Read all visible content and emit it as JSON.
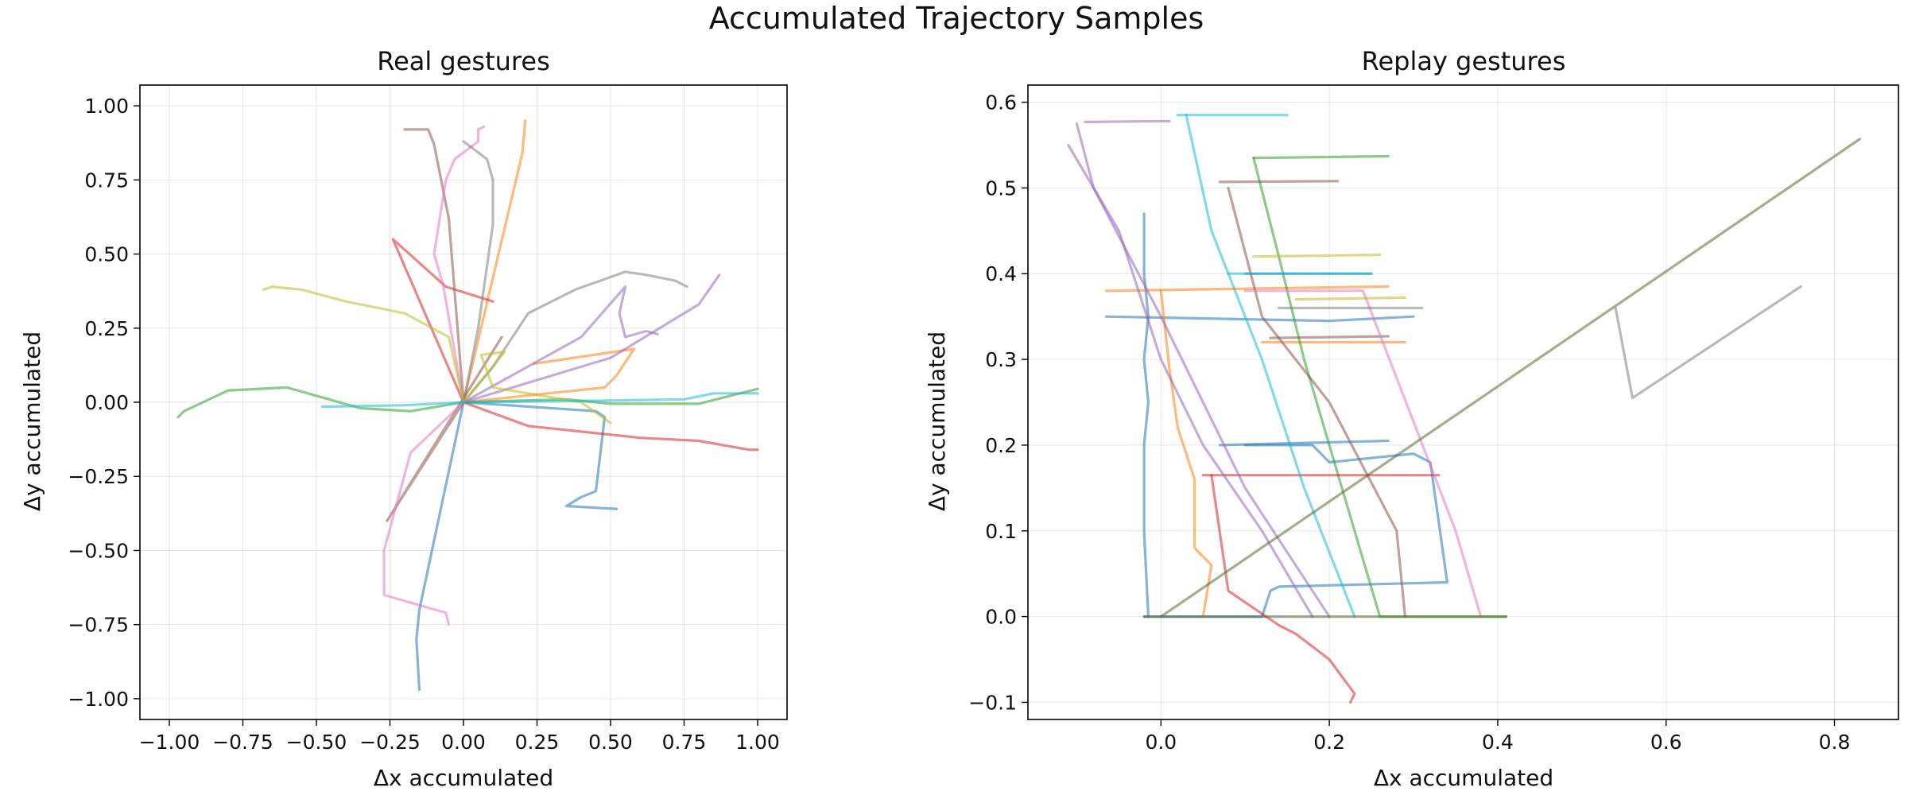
{
  "figure_title": "Accumulated Trajectory Samples",
  "chart_data": [
    {
      "type": "line",
      "title": "Real gestures",
      "xlabel": "Δx accumulated",
      "ylabel": "Δy accumulated",
      "xlim": [
        -1.1,
        1.1
      ],
      "ylim": [
        -1.07,
        1.07
      ],
      "xticks": [
        -1.0,
        -0.75,
        -0.5,
        -0.25,
        0.0,
        0.25,
        0.5,
        0.75,
        1.0
      ],
      "yticks": [
        -1.0,
        -0.75,
        -0.5,
        -0.25,
        0.0,
        0.25,
        0.5,
        0.75,
        1.0
      ],
      "grid": true,
      "legend": "none",
      "series": [
        {
          "color": "#1f77b4",
          "points": [
            [
              0,
              0
            ],
            [
              -0.15,
              -0.7
            ],
            [
              -0.16,
              -0.8
            ],
            [
              -0.15,
              -0.97
            ]
          ]
        },
        {
          "color": "#1f77b4",
          "points": [
            [
              0,
              0
            ],
            [
              0.45,
              -0.03
            ],
            [
              0.48,
              -0.05
            ],
            [
              0.45,
              -0.3
            ],
            [
              0.4,
              -0.32
            ],
            [
              0.35,
              -0.35
            ],
            [
              0.52,
              -0.36
            ]
          ]
        },
        {
          "color": "#ff7f0e",
          "points": [
            [
              0,
              0
            ],
            [
              0.2,
              0.84
            ],
            [
              0.21,
              0.95
            ]
          ]
        },
        {
          "color": "#ff7f0e",
          "points": [
            [
              0,
              0
            ],
            [
              0.48,
              0.05
            ],
            [
              0.52,
              0.09
            ],
            [
              0.58,
              0.18
            ],
            [
              0.24,
              0.13
            ]
          ]
        },
        {
          "color": "#2ca02c",
          "points": [
            [
              0,
              0
            ],
            [
              -0.18,
              -0.03
            ],
            [
              -0.35,
              -0.02
            ],
            [
              -0.6,
              0.05
            ],
            [
              -0.8,
              0.04
            ],
            [
              -0.95,
              -0.03
            ],
            [
              -0.97,
              -0.05
            ]
          ]
        },
        {
          "color": "#2ca02c",
          "points": [
            [
              0,
              0
            ],
            [
              0.35,
              0.01
            ],
            [
              0.5,
              -0.005
            ],
            [
              0.8,
              -0.005
            ],
            [
              1.0,
              0.045
            ]
          ]
        },
        {
          "color": "#d62728",
          "points": [
            [
              0,
              0
            ],
            [
              -0.24,
              0.55
            ],
            [
              -0.06,
              0.39
            ],
            [
              0.1,
              0.34
            ]
          ]
        },
        {
          "color": "#d62728",
          "points": [
            [
              0,
              0
            ],
            [
              0.22,
              -0.08
            ],
            [
              0.6,
              -0.12
            ],
            [
              0.8,
              -0.13
            ],
            [
              0.97,
              -0.16
            ],
            [
              1.0,
              -0.16
            ]
          ]
        },
        {
          "color": "#9467bd",
          "points": [
            [
              0,
              0
            ],
            [
              0.4,
              0.22
            ],
            [
              0.55,
              0.39
            ],
            [
              0.53,
              0.3
            ],
            [
              0.55,
              0.22
            ],
            [
              0.62,
              0.24
            ],
            [
              0.66,
              0.23
            ]
          ]
        },
        {
          "color": "#9467bd",
          "points": [
            [
              0,
              0
            ],
            [
              0.5,
              0.15
            ],
            [
              0.8,
              0.33
            ],
            [
              0.87,
              0.43
            ]
          ]
        },
        {
          "color": "#8c564b",
          "points": [
            [
              0,
              0
            ],
            [
              -0.05,
              0.62
            ],
            [
              -0.1,
              0.87
            ],
            [
              -0.12,
              0.92
            ],
            [
              -0.2,
              0.92
            ]
          ]
        },
        {
          "color": "#8c564b",
          "points": [
            [
              0,
              0
            ],
            [
              -0.26,
              -0.4
            ],
            [
              0.13,
              0.22
            ]
          ]
        },
        {
          "color": "#e377c2",
          "points": [
            [
              0,
              0
            ],
            [
              -0.07,
              0.4
            ],
            [
              -0.1,
              0.5
            ],
            [
              -0.06,
              0.75
            ],
            [
              -0.03,
              0.82
            ],
            [
              0.05,
              0.88
            ],
            [
              0.05,
              0.92
            ],
            [
              0.07,
              0.93
            ]
          ]
        },
        {
          "color": "#e377c2",
          "points": [
            [
              0,
              0
            ],
            [
              -0.18,
              -0.17
            ],
            [
              -0.27,
              -0.5
            ],
            [
              -0.27,
              -0.65
            ],
            [
              -0.06,
              -0.71
            ],
            [
              -0.05,
              -0.75
            ]
          ]
        },
        {
          "color": "#7f7f7f",
          "points": [
            [
              0,
              0
            ],
            [
              0.1,
              0.12
            ],
            [
              0.22,
              0.3
            ],
            [
              0.38,
              0.38
            ],
            [
              0.55,
              0.44
            ],
            [
              0.62,
              0.43
            ],
            [
              0.72,
              0.41
            ],
            [
              0.76,
              0.39
            ]
          ]
        },
        {
          "color": "#7f7f7f",
          "points": [
            [
              0,
              0
            ],
            [
              0.05,
              0.25
            ],
            [
              0.1,
              0.6
            ],
            [
              0.1,
              0.75
            ],
            [
              0.08,
              0.82
            ],
            [
              0,
              0.88
            ]
          ]
        },
        {
          "color": "#bcbd22",
          "points": [
            [
              0,
              0
            ],
            [
              -0.05,
              0.22
            ],
            [
              -0.2,
              0.3
            ],
            [
              -0.4,
              0.34
            ],
            [
              -0.55,
              0.38
            ],
            [
              -0.65,
              0.39
            ],
            [
              -0.68,
              0.38
            ]
          ]
        },
        {
          "color": "#bcbd22",
          "points": [
            [
              0,
              0
            ],
            [
              0.1,
              0.12
            ],
            [
              0.14,
              0.17
            ],
            [
              0.06,
              0.16
            ],
            [
              0.1,
              0.05
            ],
            [
              0.4,
              0.0
            ],
            [
              0.5,
              -0.07
            ]
          ]
        },
        {
          "color": "#17becf",
          "points": [
            [
              0,
              0
            ],
            [
              -0.2,
              -0.01
            ],
            [
              -0.48,
              -0.015
            ]
          ]
        },
        {
          "color": "#17becf",
          "points": [
            [
              0,
              0
            ],
            [
              0.45,
              0.005
            ],
            [
              0.75,
              0.01
            ],
            [
              0.85,
              0.03
            ],
            [
              1.0,
              0.03
            ]
          ]
        }
      ]
    },
    {
      "type": "line",
      "title": "Replay gestures",
      "xlabel": "Δx accumulated",
      "ylabel": "Δy accumulated",
      "xlim": [
        -0.158,
        0.876
      ],
      "ylim": [
        -0.12,
        0.62
      ],
      "xticks": [
        0.0,
        0.2,
        0.4,
        0.6,
        0.8
      ],
      "yticks": [
        -0.1,
        0.0,
        0.1,
        0.2,
        0.3,
        0.4,
        0.5,
        0.6
      ],
      "grid": true,
      "legend": "none",
      "series": [
        {
          "color": "#1f77b4",
          "points": [
            [
              -0.02,
              0.47
            ],
            [
              -0.02,
              0.4
            ],
            [
              -0.015,
              0.35
            ],
            [
              -0.02,
              0.3
            ],
            [
              -0.015,
              0.25
            ],
            [
              -0.02,
              0.2
            ],
            [
              -0.02,
              0.1
            ],
            [
              -0.015,
              0.0
            ]
          ]
        },
        {
          "color": "#1f77b4",
          "points": [
            [
              -0.065,
              0.35
            ],
            [
              0.2,
              0.345
            ],
            [
              0.3,
              0.35
            ]
          ]
        },
        {
          "color": "#1f77b4",
          "points": [
            [
              0.07,
              0.2
            ],
            [
              0.27,
              0.205
            ]
          ]
        },
        {
          "color": "#1f77b4",
          "points": [
            [
              0.1,
              0.2
            ],
            [
              0.18,
              0.2
            ],
            [
              0.2,
              0.18
            ],
            [
              0.3,
              0.19
            ],
            [
              0.32,
              0.18
            ],
            [
              0.34,
              0.04
            ],
            [
              0.14,
              0.035
            ],
            [
              0.13,
              0.03
            ],
            [
              0.12,
              0.0
            ],
            [
              -0.02,
              0.0
            ]
          ]
        },
        {
          "color": "#1f77b4",
          "points": [
            [
              0.1,
              0.4
            ],
            [
              0.25,
              0.4
            ]
          ]
        },
        {
          "color": "#ff7f0e",
          "points": [
            [
              -0.065,
              0.38
            ],
            [
              0.27,
              0.385
            ]
          ]
        },
        {
          "color": "#ff7f0e",
          "points": [
            [
              0.0,
              0.38
            ],
            [
              0.01,
              0.29
            ],
            [
              0.02,
              0.22
            ],
            [
              0.04,
              0.16
            ],
            [
              0.04,
              0.08
            ],
            [
              0.06,
              0.06
            ],
            [
              0.05,
              0.0
            ]
          ]
        },
        {
          "color": "#ff7f0e",
          "points": [
            [
              0.12,
              0.32
            ],
            [
              0.29,
              0.32
            ]
          ]
        },
        {
          "color": "#2ca02c",
          "points": [
            [
              0.11,
              0.535
            ],
            [
              0.27,
              0.537
            ]
          ]
        },
        {
          "color": "#2ca02c",
          "points": [
            [
              0.11,
              0.535
            ],
            [
              0.14,
              0.42
            ],
            [
              0.17,
              0.3
            ],
            [
              0.2,
              0.2
            ],
            [
              0.23,
              0.1
            ],
            [
              0.26,
              0.0
            ],
            [
              0.41,
              0.0
            ]
          ]
        },
        {
          "color": "#d62728",
          "points": [
            [
              0.05,
              0.165
            ],
            [
              0.33,
              0.165
            ]
          ]
        },
        {
          "color": "#d62728",
          "points": [
            [
              0.06,
              0.165
            ],
            [
              0.08,
              0.03
            ],
            [
              0.14,
              -0.01
            ],
            [
              0.16,
              -0.02
            ],
            [
              0.2,
              -0.05
            ],
            [
              0.23,
              -0.09
            ],
            [
              0.225,
              -0.1
            ]
          ]
        },
        {
          "color": "#9467bd",
          "points": [
            [
              -0.09,
              0.577
            ],
            [
              0.01,
              0.578
            ]
          ]
        },
        {
          "color": "#9467bd",
          "points": [
            [
              -0.11,
              0.55
            ],
            [
              -0.05,
              0.45
            ],
            [
              0.0,
              0.3
            ],
            [
              0.05,
              0.2
            ],
            [
              0.12,
              0.1
            ],
            [
              0.18,
              0.0
            ]
          ]
        },
        {
          "color": "#9467bd",
          "points": [
            [
              -0.1,
              0.575
            ],
            [
              -0.08,
              0.5
            ],
            [
              0.0,
              0.35
            ],
            [
              0.1,
              0.15
            ],
            [
              0.2,
              0.0
            ]
          ]
        },
        {
          "color": "#8c564b",
          "points": [
            [
              0.07,
              0.507
            ],
            [
              0.21,
              0.508
            ]
          ]
        },
        {
          "color": "#8c564b",
          "points": [
            [
              0.08,
              0.5
            ],
            [
              0.12,
              0.35
            ],
            [
              0.2,
              0.25
            ],
            [
              0.28,
              0.1
            ],
            [
              0.29,
              0.0
            ]
          ]
        },
        {
          "color": "#8c564b",
          "points": [
            [
              0.13,
              0.325
            ],
            [
              0.27,
              0.327
            ]
          ]
        },
        {
          "color": "#e377c2",
          "points": [
            [
              0.1,
              0.38
            ],
            [
              0.24,
              0.38
            ],
            [
              0.35,
              0.1
            ],
            [
              0.38,
              0.0
            ]
          ]
        },
        {
          "color": "#7f7f7f",
          "points": [
            [
              0.54,
              0.36
            ],
            [
              0.56,
              0.255
            ],
            [
              0.76,
              0.385
            ]
          ]
        },
        {
          "color": "#7f7f7f",
          "points": [
            [
              0.14,
              0.36
            ],
            [
              0.31,
              0.36
            ]
          ]
        },
        {
          "color": "#bcbd22",
          "points": [
            [
              0.11,
              0.42
            ],
            [
              0.26,
              0.422
            ]
          ]
        },
        {
          "color": "#bcbd22",
          "points": [
            [
              0.16,
              0.37
            ],
            [
              0.29,
              0.372
            ]
          ]
        },
        {
          "color": "#17becf",
          "points": [
            [
              0.02,
              0.585
            ],
            [
              0.15,
              0.585
            ]
          ]
        },
        {
          "color": "#17becf",
          "points": [
            [
              0.03,
              0.585
            ],
            [
              0.06,
              0.45
            ],
            [
              0.12,
              0.3
            ],
            [
              0.17,
              0.15
            ],
            [
              0.23,
              0.0
            ]
          ]
        },
        {
          "color": "#17becf",
          "points": [
            [
              0.08,
              0.4
            ],
            [
              0.25,
              0.4
            ]
          ]
        },
        {
          "color": "#556b2f",
          "points": [
            [
              0.0,
              0.0
            ],
            [
              0.83,
              0.557
            ]
          ]
        },
        {
          "color": "#556b2f",
          "points": [
            [
              -0.02,
              0.0
            ],
            [
              0.41,
              0.0
            ]
          ]
        }
      ]
    }
  ]
}
